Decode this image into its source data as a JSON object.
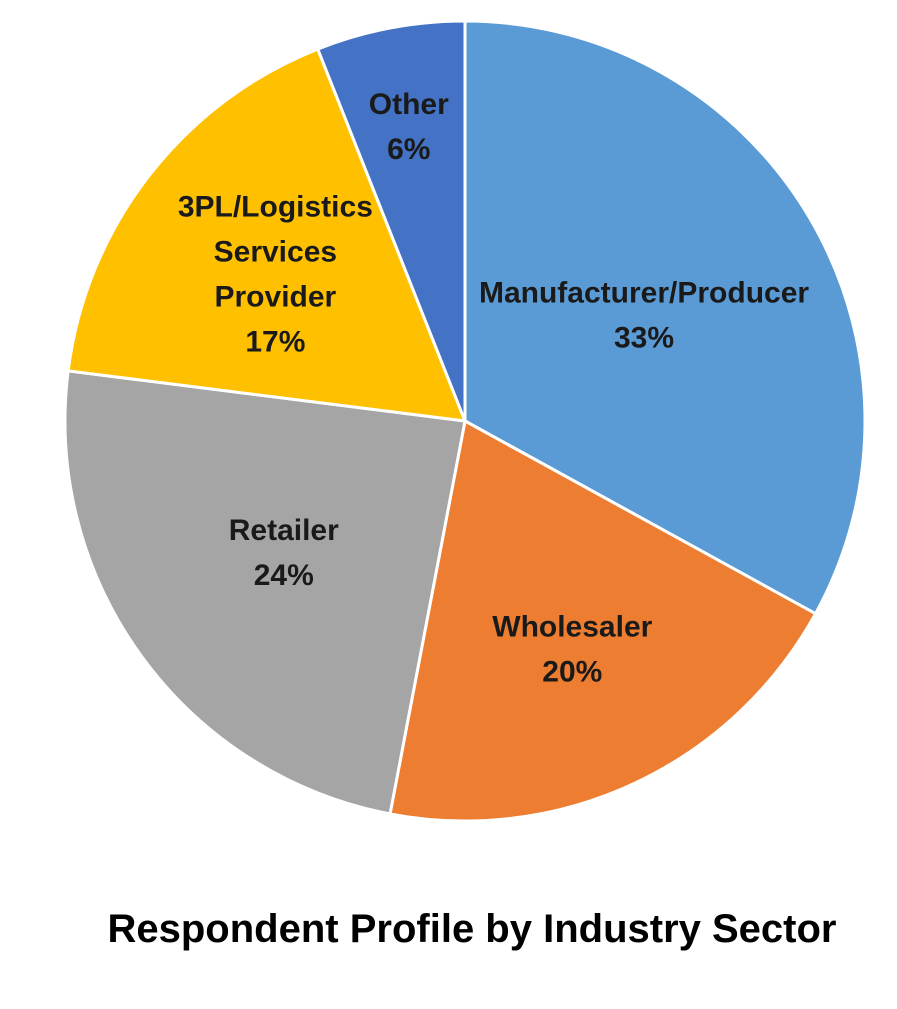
{
  "chart_data": {
    "type": "pie",
    "title": "Respondent Profile by Industry Sector",
    "slices": [
      {
        "label": "Manufacturer/Producer",
        "value": 33,
        "value_label": "33%",
        "color": "#5B9BD5"
      },
      {
        "label": "Wholesaler",
        "value": 20,
        "value_label": "20%",
        "color": "#ED7D31"
      },
      {
        "label": "Retailer",
        "value": 24,
        "value_label": "24%",
        "color": "#A5A5A5"
      },
      {
        "label": "3PL/Logistics Services Provider",
        "label_lines": [
          "3PL/Logistics",
          "Services",
          "Provider"
        ],
        "value": 17,
        "value_label": "17%",
        "color": "#FFC000"
      },
      {
        "label": "Other",
        "value": 6,
        "value_label": "6%",
        "color": "#4472C4"
      }
    ],
    "start_angle_deg": 0,
    "direction": "clockwise",
    "legend": "none",
    "data_labels": "inside"
  }
}
